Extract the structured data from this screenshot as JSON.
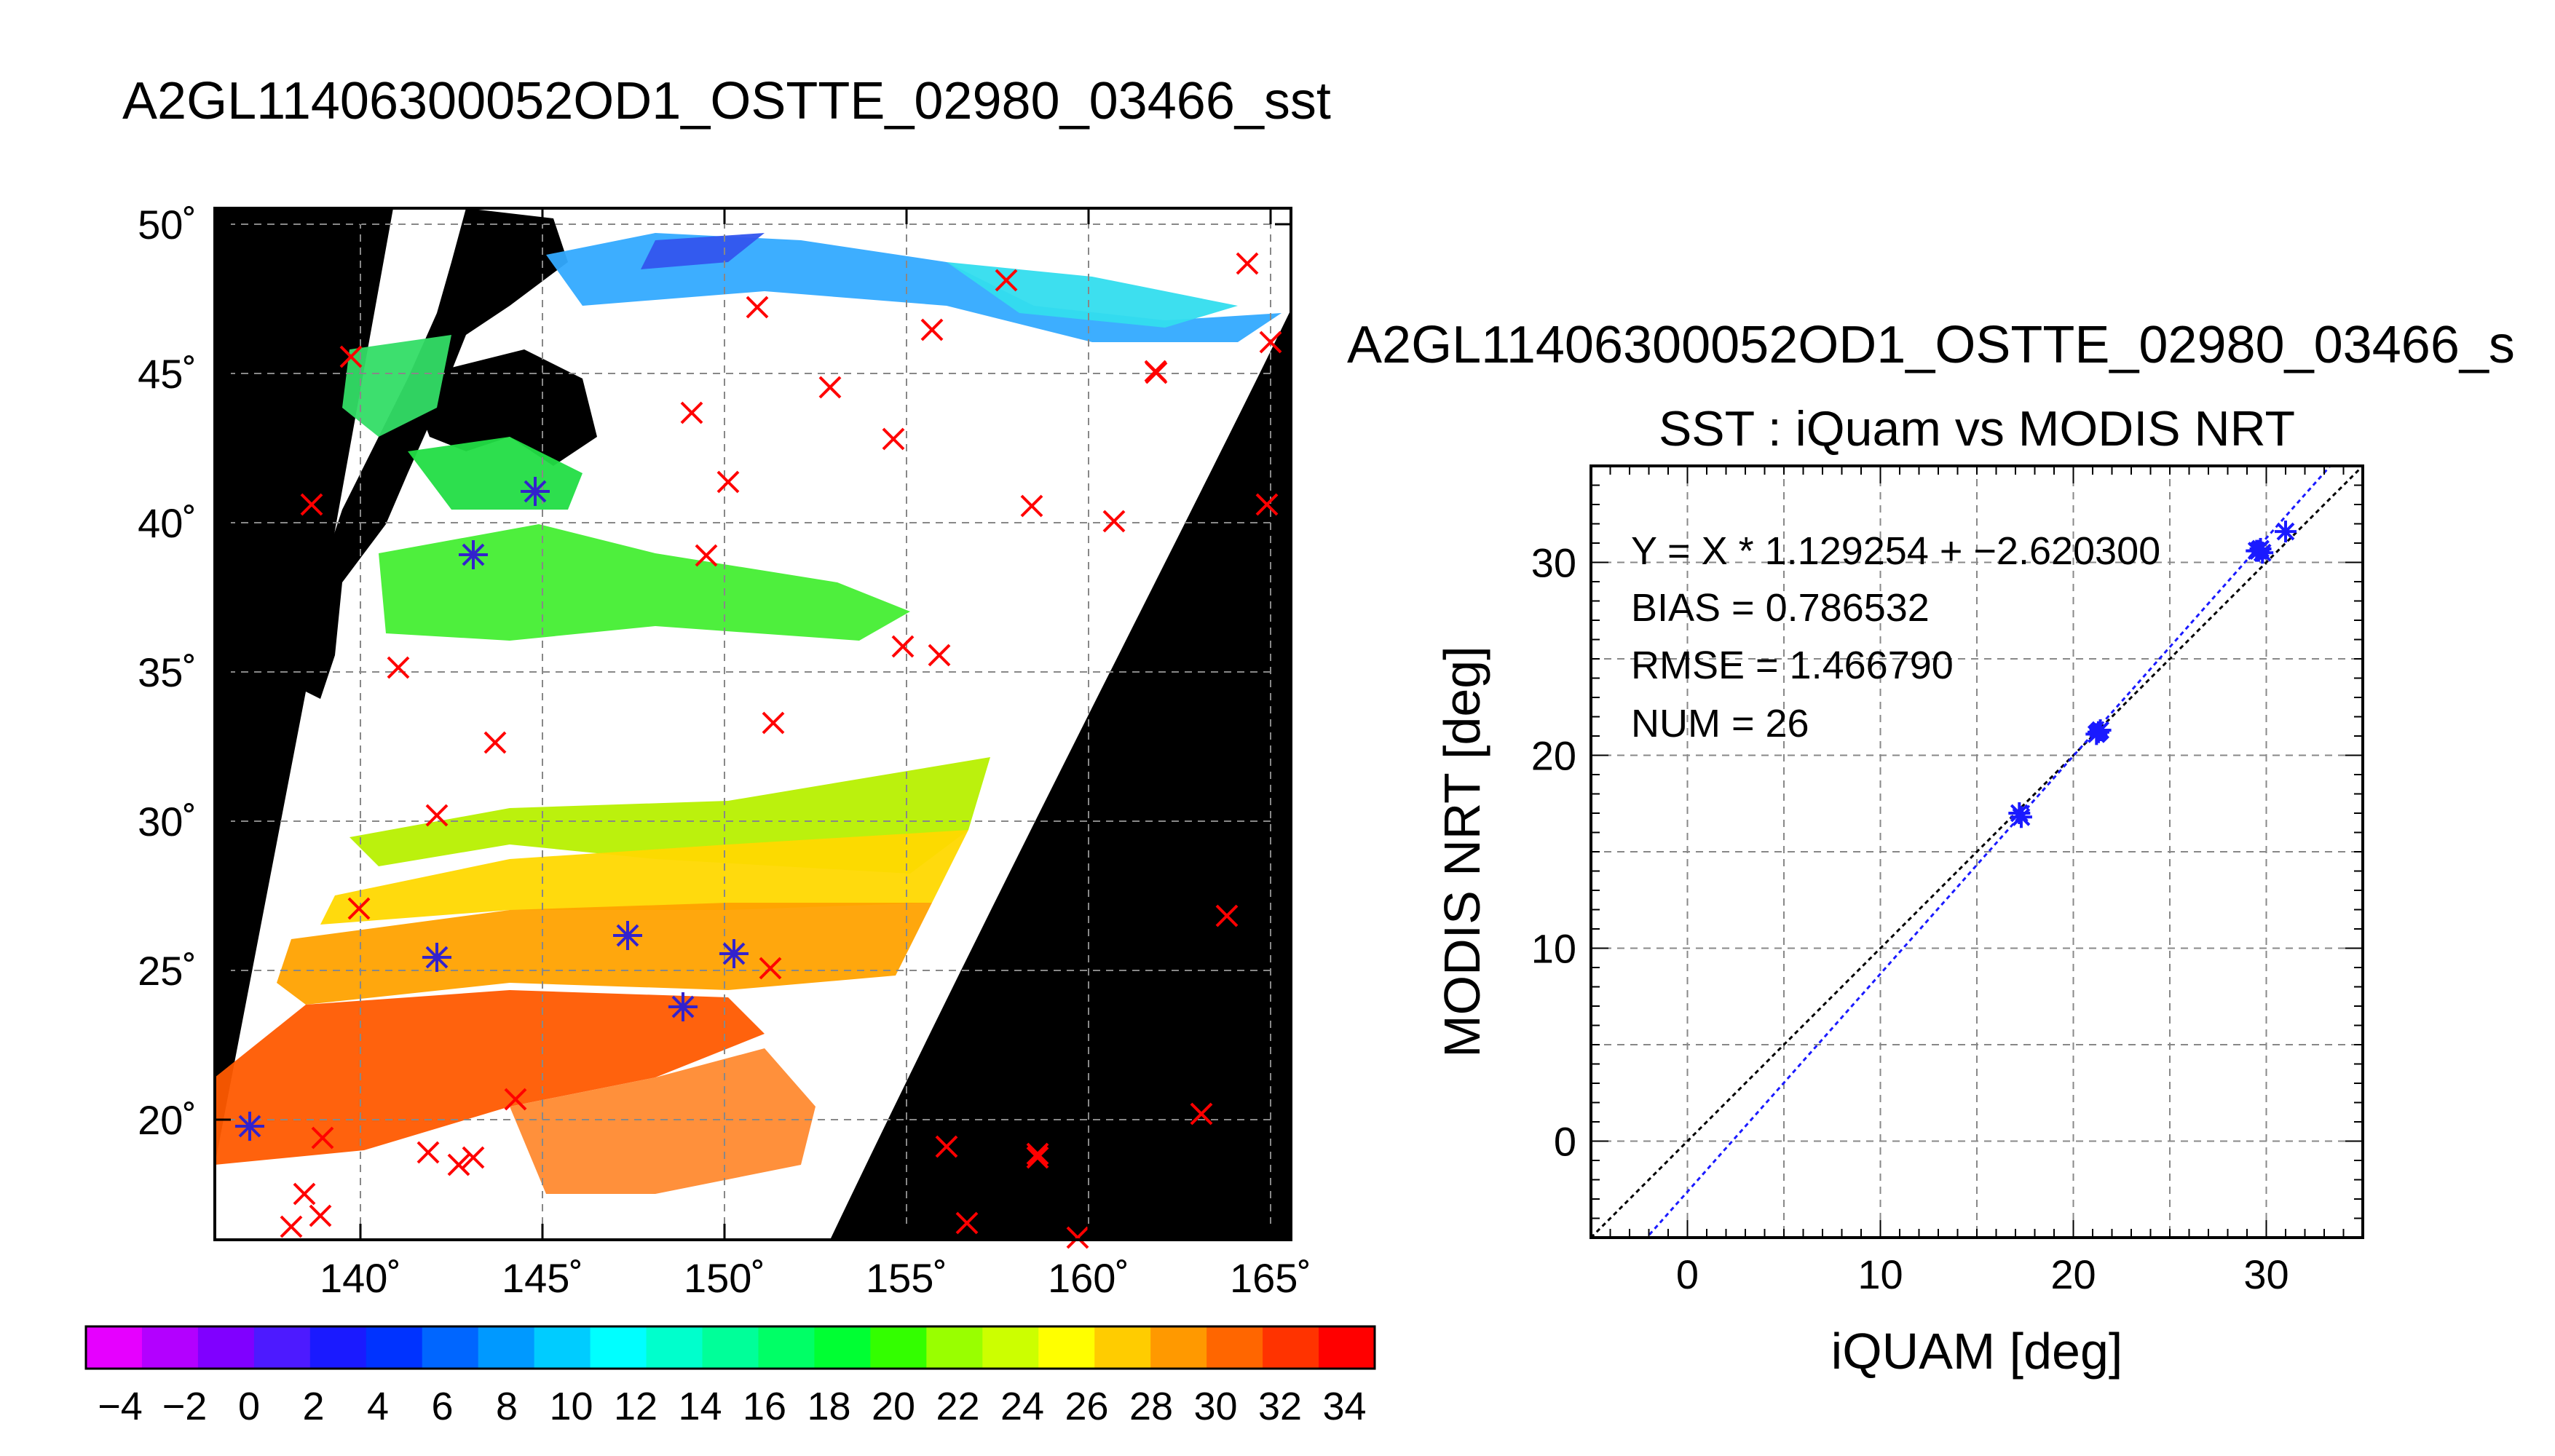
{
  "main_title": "A2GL1140630005 2OD1_OSTTE_02980_03466_sst",
  "map": {
    "lat_ticks": [
      "50˚",
      "45˚",
      "40˚",
      "35˚",
      "30˚",
      "25˚",
      "20˚"
    ],
    "lon_ticks": [
      "140˚",
      "145˚",
      "150˚",
      "155˚",
      "160˚",
      "165˚"
    ],
    "colorbar_ticks": [
      "−4",
      "−2",
      "0",
      "2",
      "4",
      "6",
      "8",
      "10",
      "12",
      "14",
      "16",
      "18",
      "20",
      "22",
      "24",
      "26",
      "28",
      "30",
      "32",
      "34"
    ],
    "colorbar_colors": [
      "#e600ff",
      "#b300ff",
      "#8000ff",
      "#4d1aff",
      "#1a1aff",
      "#0033ff",
      "#0066ff",
      "#0099ff",
      "#00ccff",
      "#00ffff",
      "#00ffcc",
      "#00ff99",
      "#00ff66",
      "#00ff33",
      "#33ff00",
      "#99ff00",
      "#ccff00",
      "#ffff00",
      "#ffcc00",
      "#ff9900",
      "#ff6600",
      "#ff3300",
      "#ff0000"
    ]
  },
  "right_title": "A2GL11406300052OD1_OSTTE_02980_03466_s",
  "chart_data": {
    "type": "scatter",
    "title": "SST : iQuam vs MODIS NRT",
    "xlabel": "iQUAM [deg]",
    "ylabel": "MODIS NRT [deg]",
    "xlim": [
      -5,
      35
    ],
    "ylim": [
      -5,
      35
    ],
    "x_ticks": [
      0,
      10,
      20,
      30
    ],
    "y_ticks": [
      0,
      10,
      20,
      30
    ],
    "grid": true,
    "stats": {
      "regression": "Y = X * 1.129254 + −2.620300",
      "bias": "BIAS = 0.786532",
      "rmse": "RMSE = 1.466790",
      "num": "NUM = 26"
    },
    "fit": {
      "slope": 1.129254,
      "intercept": -2.6203
    },
    "points": {
      "x": [
        17.2,
        17.3,
        21.2,
        21.4,
        21.3,
        29.5,
        29.7,
        29.8,
        29.6,
        31.0
      ],
      "y": [
        17.0,
        16.8,
        21.1,
        21.3,
        21.2,
        30.6,
        30.7,
        30.5,
        30.6,
        31.6
      ]
    }
  }
}
